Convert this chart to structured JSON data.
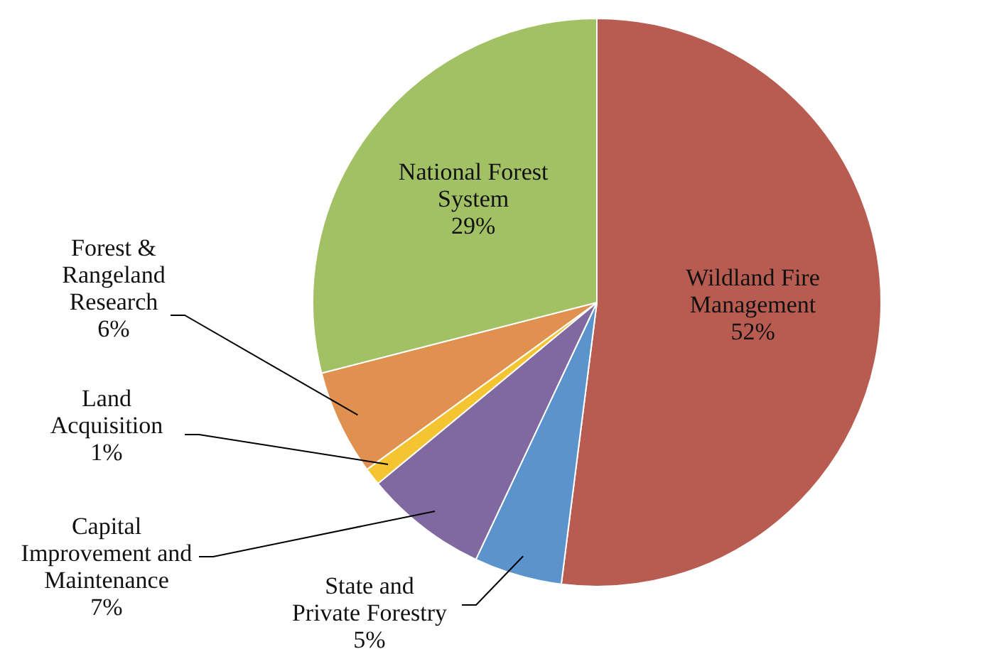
{
  "chart_data": {
    "type": "pie",
    "categories": [
      "Wildland Fire Management",
      "State and Private Forestry",
      "Capital Improvement and Maintenance",
      "Land Acquisition",
      "Forest & Rangeland Research",
      "National Forest System"
    ],
    "values": [
      52,
      5,
      7,
      1,
      6,
      29
    ],
    "colors": [
      "#b85c52",
      "#5b93cd",
      "#8069a0",
      "#f5c531",
      "#e0914f",
      "#a2c164"
    ],
    "value_labels": [
      "52%",
      "5%",
      "7%",
      "1%",
      "6%",
      "29%"
    ]
  }
}
